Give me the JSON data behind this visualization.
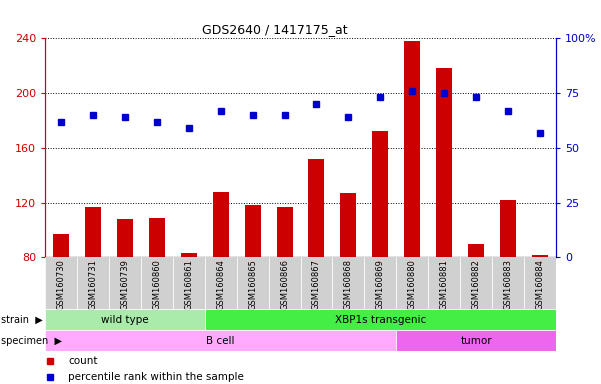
{
  "title": "GDS2640 / 1417175_at",
  "samples": [
    "GSM160730",
    "GSM160731",
    "GSM160739",
    "GSM160860",
    "GSM160861",
    "GSM160864",
    "GSM160865",
    "GSM160866",
    "GSM160867",
    "GSM160868",
    "GSM160869",
    "GSM160880",
    "GSM160881",
    "GSM160882",
    "GSM160883",
    "GSM160884"
  ],
  "counts": [
    97,
    117,
    108,
    109,
    83,
    128,
    118,
    117,
    152,
    127,
    172,
    238,
    218,
    90,
    122,
    82
  ],
  "percentiles": [
    62,
    65,
    64,
    62,
    59,
    67,
    65,
    65,
    70,
    64,
    73,
    76,
    75,
    73,
    67,
    57
  ],
  "ylim_left": [
    80,
    240
  ],
  "ylim_right": [
    0,
    100
  ],
  "yticks_left": [
    80,
    120,
    160,
    200,
    240
  ],
  "yticks_right": [
    0,
    25,
    50,
    75,
    100
  ],
  "ytick_labels_right": [
    "0",
    "25",
    "50",
    "75",
    "100%"
  ],
  "bar_color": "#cc0000",
  "dot_color": "#0000cc",
  "bar_width": 0.5,
  "grid_color": "#000000",
  "strain_groups": [
    {
      "label": "wild type",
      "start": 0,
      "end": 5,
      "color": "#aaeaaa"
    },
    {
      "label": "XBP1s transgenic",
      "start": 5,
      "end": 16,
      "color": "#44ee44"
    }
  ],
  "specimen_groups": [
    {
      "label": "B cell",
      "start": 0,
      "end": 11,
      "color": "#ffaaff"
    },
    {
      "label": "tumor",
      "start": 11,
      "end": 16,
      "color": "#ee66ee"
    }
  ],
  "left_tick_color": "#cc0000",
  "right_tick_color": "#0000cc",
  "tick_label_bg": "#d0d0d0"
}
